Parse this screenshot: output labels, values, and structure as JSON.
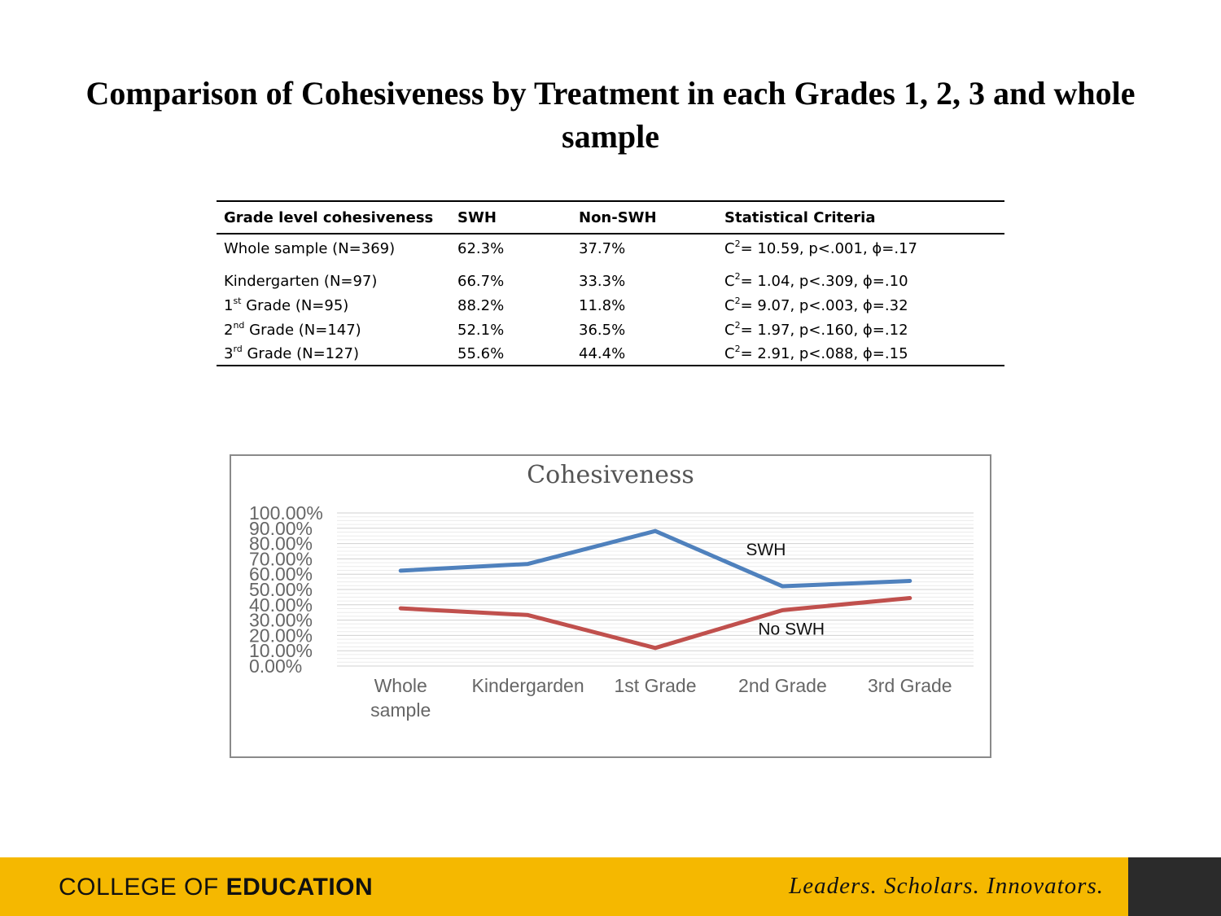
{
  "slide": {
    "title": "Comparison of Cohesiveness by Treatment in each Grades 1, 2, 3 and whole sample"
  },
  "table": {
    "headers": [
      "Grade level cohesiveness",
      "SWH",
      "Non-SWH",
      "Statistical Criteria"
    ],
    "rows": [
      {
        "label": "Whole sample (N=369)",
        "ord": "",
        "label_rest": "",
        "swh": "62.3%",
        "non_swh": "37.7%",
        "stat_pre": "C",
        "stat_sup": "2",
        "stat_post": "= 10.59, p<.001, ϕ=.17"
      },
      {
        "label": "Kindergarten (N=97)",
        "ord": "",
        "label_rest": "",
        "swh": "66.7%",
        "non_swh": "33.3%",
        "stat_pre": "C",
        "stat_sup": "2",
        "stat_post": "= 1.04, p<.309, ϕ=.10"
      },
      {
        "label": "1",
        "ord": "st",
        "label_rest": " Grade (N=95)",
        "swh": "88.2%",
        "non_swh": "11.8%",
        "stat_pre": "C",
        "stat_sup": "2",
        "stat_post": "= 9.07, p<.003, ϕ=.32"
      },
      {
        "label": "2",
        "ord": "nd",
        "label_rest": " Grade (N=147)",
        "swh": "52.1%",
        "non_swh": "36.5%",
        "stat_pre": "C",
        "stat_sup": "2",
        "stat_post": "= 1.97, p<.160, ϕ=.12"
      },
      {
        "label": "3",
        "ord": "rd",
        "label_rest": " Grade (N=127)",
        "swh": "55.6%",
        "non_swh": "44.4%",
        "stat_pre": "C",
        "stat_sup": "2",
        "stat_post": "= 2.91, p<.088, ϕ=.15"
      }
    ]
  },
  "chart_data": {
    "type": "line",
    "title": "Cohesiveness",
    "categories": [
      [
        "Whole",
        "sample"
      ],
      [
        "Kindergarden"
      ],
      [
        "1st Grade"
      ],
      [
        "2nd Grade"
      ],
      [
        "3rd Grade"
      ]
    ],
    "series": [
      {
        "name": "SWH",
        "color": "#4f81bd",
        "values": [
          62.3,
          66.7,
          88.2,
          52.1,
          55.6
        ]
      },
      {
        "name": "No SWH",
        "color": "#c0504d",
        "values": [
          37.7,
          33.3,
          11.8,
          36.5,
          44.4
        ]
      }
    ],
    "y_ticks": [
      "0.00%",
      "10.00%",
      "20.00%",
      "30.00%",
      "40.00%",
      "50.00%",
      "60.00%",
      "70.00%",
      "80.00%",
      "90.00%",
      "100.00%"
    ],
    "ylim": [
      0,
      100
    ],
    "grid": true
  },
  "footer": {
    "college_prefix": "COLLEGE OF",
    "college_bold": "EDUCATION",
    "motto": "Leaders. Scholars. Innovators.",
    "bar_color": "#f5b800"
  }
}
